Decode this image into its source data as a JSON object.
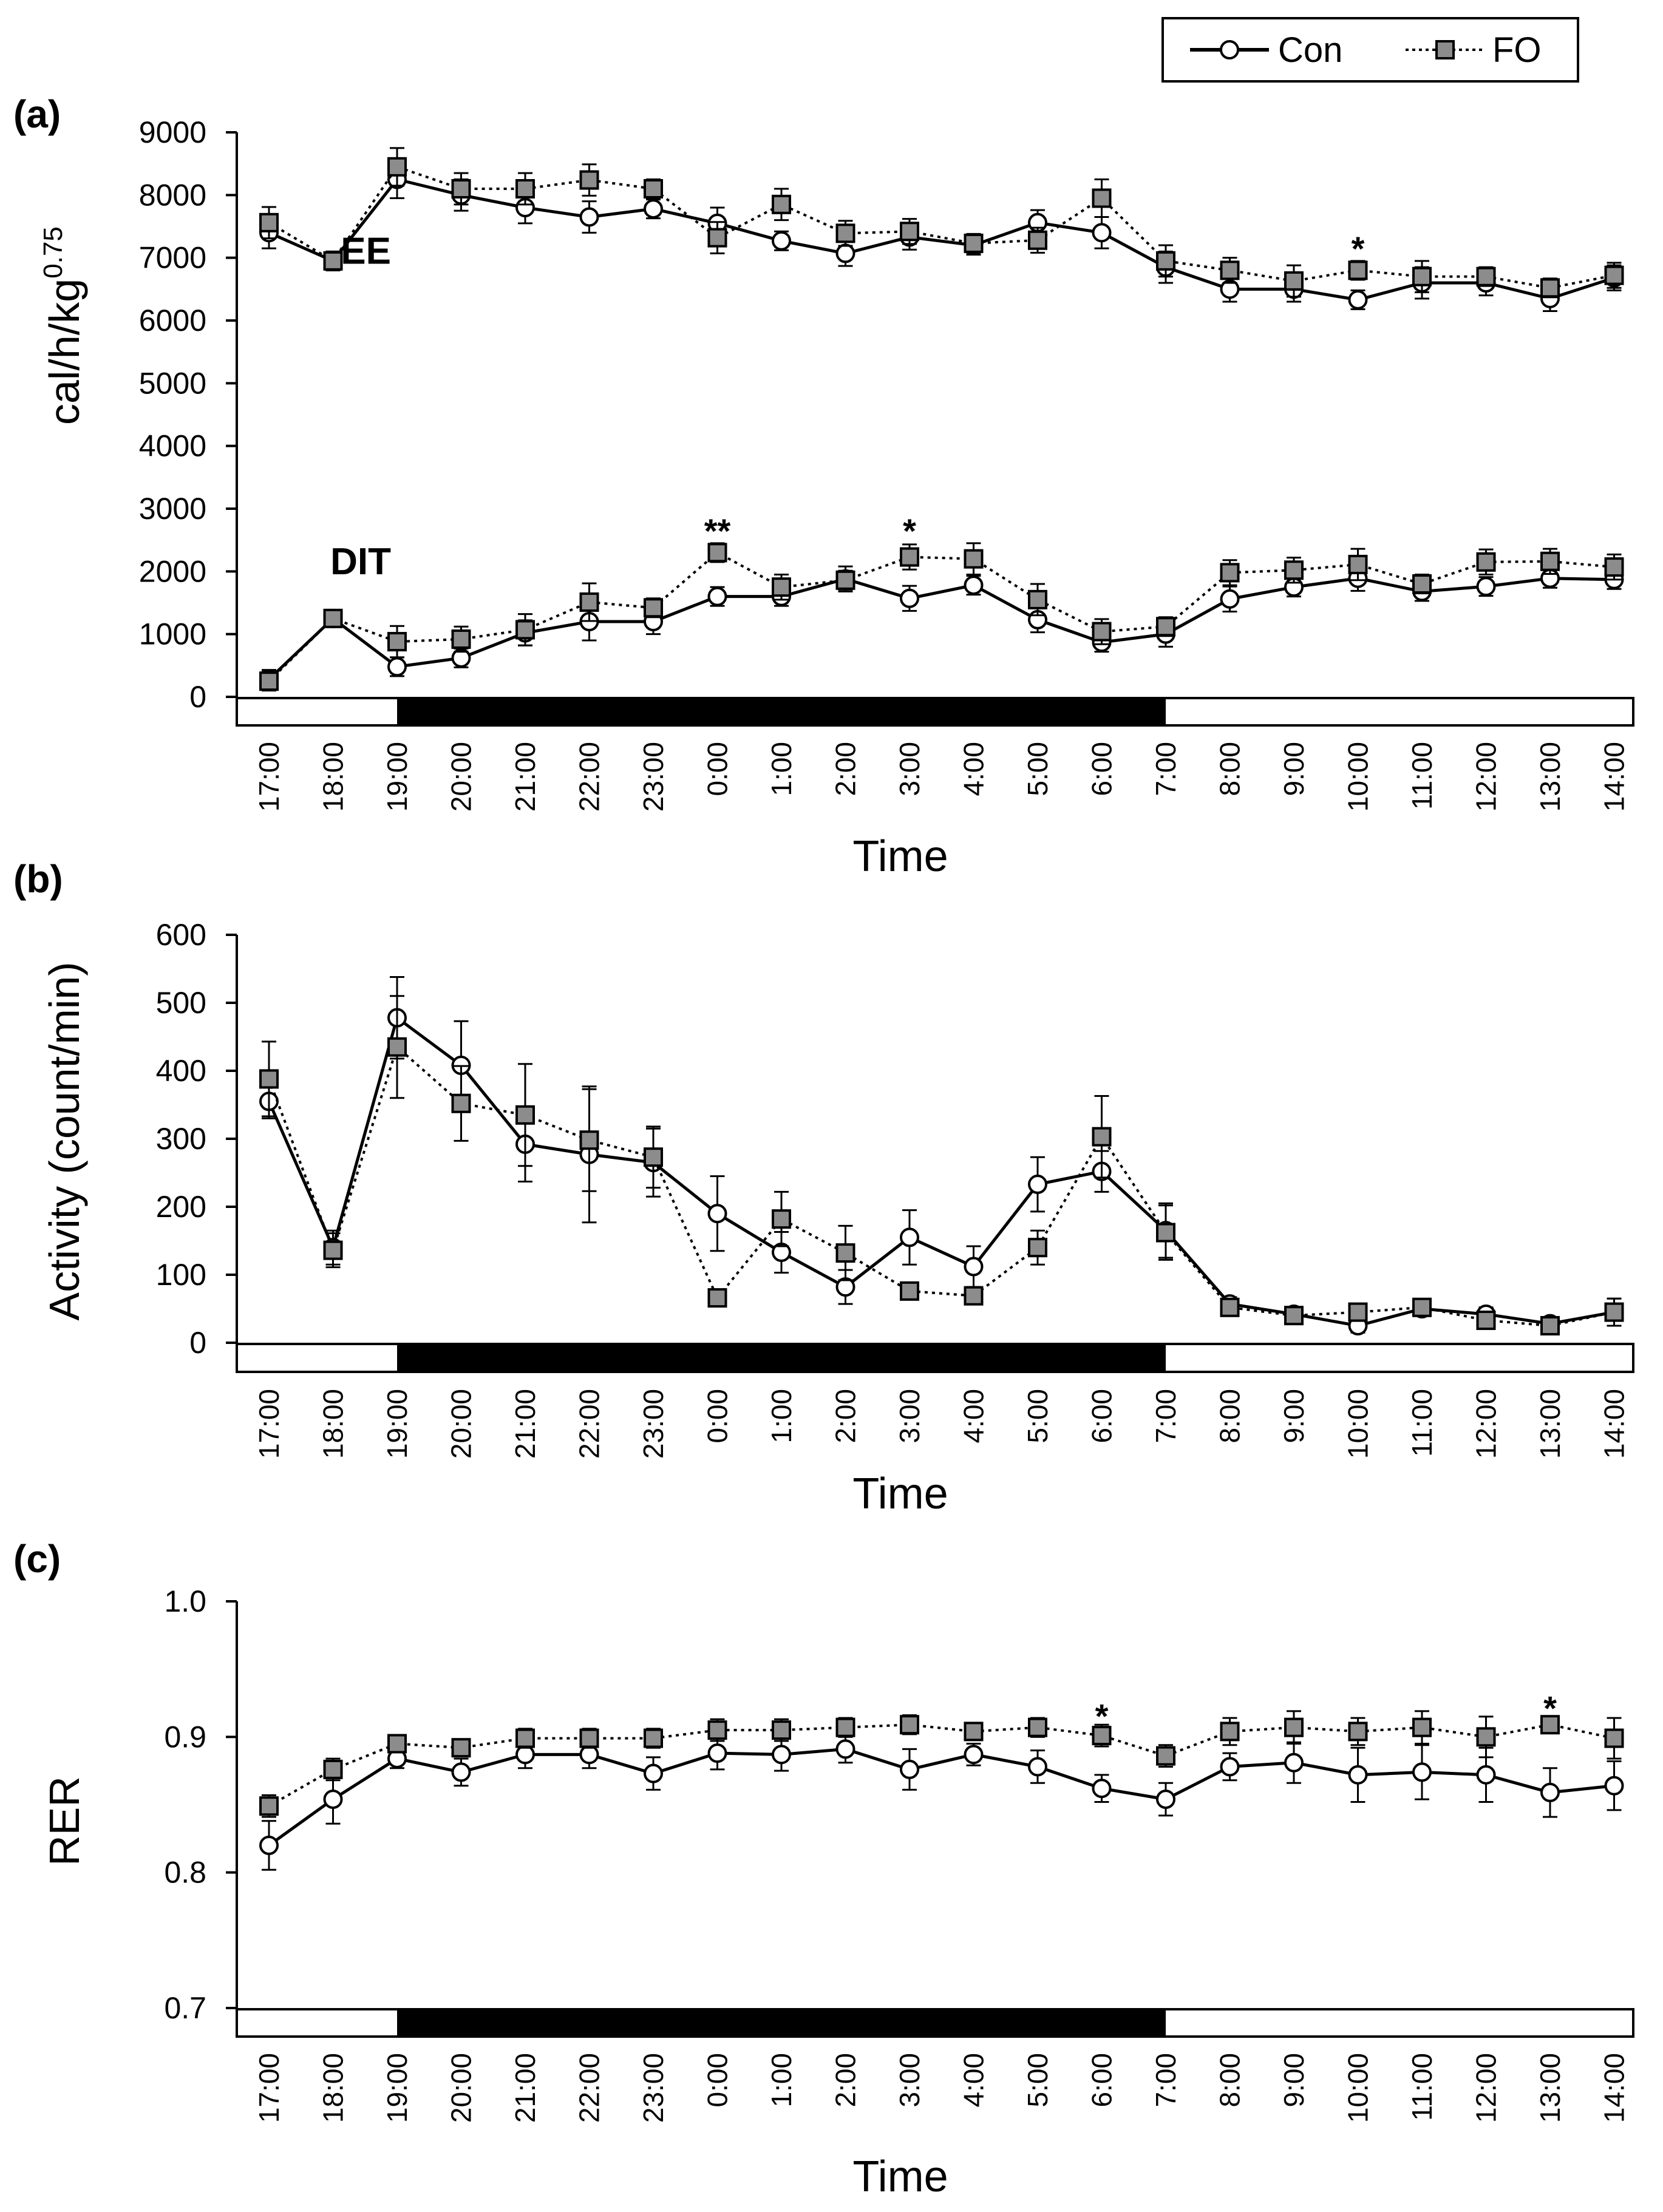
{
  "legend": {
    "con": "Con",
    "fo": "FO"
  },
  "colors": {
    "con_fill": "#ffffff",
    "fo_fill": "#8c8c8c",
    "line": "#000000",
    "dark_phase": "#000000"
  },
  "chart_data": [
    {
      "type": "line",
      "panel_label": "(a)",
      "title": "",
      "xlabel": "Time",
      "ylabel": "cal/h/kg",
      "ylabel_exponent": "0.75",
      "ylim": [
        0,
        9000
      ],
      "yticks": [
        "0",
        "1000",
        "2000",
        "3000",
        "4000",
        "5000",
        "6000",
        "7000",
        "8000",
        "9000"
      ],
      "ytick_values": [
        0,
        1000,
        2000,
        3000,
        4000,
        5000,
        6000,
        7000,
        8000,
        9000
      ],
      "categories": [
        "17:00",
        "18:00",
        "19:00",
        "20:00",
        "21:00",
        "22:00",
        "23:00",
        "0:00",
        "1:00",
        "2:00",
        "3:00",
        "4:00",
        "5:00",
        "6:00",
        "7:00",
        "8:00",
        "9:00",
        "10:00",
        "11:00",
        "12:00",
        "13:00",
        "14:00"
      ],
      "dark_phase": {
        "start": "19:00",
        "end": "7:00"
      },
      "series": [
        {
          "name": "Con",
          "group": "EE",
          "values": [
            7400,
            6950,
            8250,
            8000,
            7800,
            7650,
            7780,
            7550,
            7270,
            7070,
            7330,
            7200,
            7560,
            7400,
            6850,
            6500,
            6500,
            6330,
            6600,
            6600,
            6350,
            6680
          ],
          "errors": [
            250,
            150,
            300,
            250,
            250,
            250,
            150,
            250,
            150,
            200,
            200,
            150,
            200,
            250,
            250,
            200,
            200,
            150,
            250,
            200,
            200,
            200
          ]
        },
        {
          "name": "FO",
          "group": "EE",
          "values": [
            7560,
            6950,
            8450,
            8100,
            8100,
            8240,
            8100,
            7320,
            7850,
            7390,
            7420,
            7230,
            7280,
            7950,
            6950,
            6800,
            6630,
            6800,
            6700,
            6700,
            6520,
            6720
          ],
          "errors": [
            250,
            150,
            300,
            250,
            250,
            250,
            150,
            250,
            250,
            200,
            200,
            150,
            200,
            300,
            250,
            200,
            250,
            150,
            250,
            150,
            150,
            200
          ]
        },
        {
          "name": "Con",
          "group": "DIT",
          "values": [
            280,
            1250,
            480,
            620,
            1020,
            1200,
            1200,
            1600,
            1600,
            1880,
            1570,
            1780,
            1230,
            870,
            1000,
            1560,
            1750,
            1890,
            1680,
            1760,
            1890,
            1870
          ],
          "errors": [
            150,
            100,
            150,
            150,
            200,
            300,
            200,
            150,
            150,
            200,
            200,
            150,
            200,
            150,
            200,
            200,
            150,
            200,
            150,
            150,
            150,
            150
          ]
        },
        {
          "name": "FO",
          "group": "DIT",
          "values": [
            250,
            1250,
            880,
            920,
            1070,
            1510,
            1420,
            2300,
            1750,
            1860,
            2230,
            2200,
            1550,
            1040,
            1120,
            1980,
            2020,
            2110,
            1800,
            2150,
            2160,
            2070
          ],
          "errors": [
            150,
            100,
            250,
            200,
            250,
            300,
            150,
            150,
            200,
            150,
            200,
            250,
            250,
            200,
            150,
            200,
            200,
            250,
            150,
            200,
            200,
            200
          ]
        }
      ],
      "annotations": [
        {
          "text": "EE",
          "x": "19:00",
          "y": 7100
        },
        {
          "text": "DIT",
          "x": "19:00",
          "y": 2150
        },
        {
          "text": "**",
          "x": "0:00",
          "y": 2750
        },
        {
          "text": "*",
          "x": "3:00",
          "y": 2750
        },
        {
          "text": "*",
          "x": "10:00",
          "y": 7250
        }
      ]
    },
    {
      "type": "line",
      "panel_label": "(b)",
      "title": "",
      "xlabel": "Time",
      "ylabel": "Activity (count/min)",
      "ylim": [
        0,
        600
      ],
      "yticks": [
        "0",
        "100",
        "200",
        "300",
        "400",
        "500",
        "600"
      ],
      "ytick_values": [
        0,
        100,
        200,
        300,
        400,
        500,
        600
      ],
      "categories": [
        "17:00",
        "18:00",
        "19:00",
        "20:00",
        "21:00",
        "22:00",
        "23:00",
        "0:00",
        "1:00",
        "2:00",
        "3:00",
        "4:00",
        "5:00",
        "6:00",
        "7:00",
        "8:00",
        "9:00",
        "10:00",
        "11:00",
        "12:00",
        "13:00",
        "14:00"
      ],
      "dark_phase": {
        "start": "19:00",
        "end": "7:00"
      },
      "series": [
        {
          "name": "Con",
          "values": [
            355,
            140,
            478,
            408,
            292,
            277,
            265,
            190,
            133,
            82,
            155,
            112,
            233,
            252,
            165,
            57,
            42,
            25,
            50,
            42,
            28,
            45
          ],
          "errors": [
            25,
            25,
            60,
            65,
            55,
            100,
            50,
            55,
            30,
            25,
            40,
            30,
            40,
            30,
            40,
            10,
            10,
            10,
            10,
            10,
            10,
            20
          ]
        },
        {
          "name": "FO",
          "values": [
            388,
            136,
            435,
            352,
            335,
            298,
            273,
            66,
            182,
            132,
            76,
            69,
            140,
            303,
            162,
            52,
            40,
            45,
            52,
            33,
            25,
            45
          ],
          "errors": [
            55,
            25,
            75,
            55,
            75,
            75,
            45,
            10,
            40,
            40,
            10,
            10,
            25,
            60,
            40,
            10,
            10,
            10,
            10,
            10,
            10,
            20
          ]
        }
      ],
      "annotations": []
    },
    {
      "type": "line",
      "panel_label": "(c)",
      "title": "",
      "xlabel": "Time",
      "ylabel": "RER",
      "ylim": [
        0.7,
        1.0
      ],
      "yticks": [
        "0.7",
        "0.8",
        "0.9",
        "1.0"
      ],
      "ytick_values": [
        0.7,
        0.8,
        0.9,
        1.0
      ],
      "categories": [
        "17:00",
        "18:00",
        "19:00",
        "20:00",
        "21:00",
        "22:00",
        "23:00",
        "0:00",
        "1:00",
        "2:00",
        "3:00",
        "4:00",
        "5:00",
        "6:00",
        "7:00",
        "8:00",
        "9:00",
        "10:00",
        "11:00",
        "12:00",
        "13:00",
        "14:00"
      ],
      "dark_phase": {
        "start": "19:00",
        "end": "7:00"
      },
      "series": [
        {
          "name": "Con",
          "values": [
            0.82,
            0.854,
            0.884,
            0.874,
            0.887,
            0.887,
            0.873,
            0.888,
            0.887,
            0.891,
            0.876,
            0.887,
            0.878,
            0.862,
            0.854,
            0.878,
            0.881,
            0.872,
            0.874,
            0.872,
            0.859,
            0.864
          ],
          "errors": [
            0.018,
            0.018,
            0.007,
            0.01,
            0.01,
            0.01,
            0.012,
            0.012,
            0.012,
            0.01,
            0.015,
            0.008,
            0.012,
            0.01,
            0.012,
            0.01,
            0.015,
            0.02,
            0.02,
            0.02,
            0.018,
            0.018
          ]
        },
        {
          "name": "FO",
          "values": [
            0.849,
            0.876,
            0.895,
            0.892,
            0.899,
            0.899,
            0.899,
            0.905,
            0.905,
            0.907,
            0.909,
            0.904,
            0.907,
            0.901,
            0.886,
            0.904,
            0.907,
            0.904,
            0.907,
            0.9,
            0.909,
            0.899
          ],
          "errors": [
            0.008,
            0.008,
            0.006,
            0.006,
            0.007,
            0.007,
            0.007,
            0.008,
            0.008,
            0.007,
            0.007,
            0.006,
            0.007,
            0.008,
            0.008,
            0.01,
            0.012,
            0.01,
            0.012,
            0.015,
            0.006,
            0.015
          ]
        }
      ],
      "annotations": [
        {
          "text": "*",
          "x": "6:00",
          "y": 0.92
        },
        {
          "text": "*",
          "x": "13:00",
          "y": 0.926
        }
      ]
    }
  ]
}
